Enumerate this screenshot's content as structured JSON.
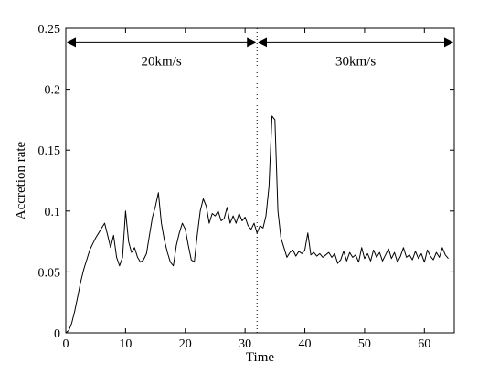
{
  "chart_data": {
    "type": "line",
    "title": "",
    "xlabel": "Time",
    "ylabel": "Accretion rate",
    "xlim": [
      0,
      65
    ],
    "ylim": [
      0,
      0.25
    ],
    "grid": false,
    "x_ticks": [
      0,
      10,
      20,
      30,
      40,
      50,
      60
    ],
    "x_tick_labels": [
      "0",
      "10",
      "20",
      "30",
      "40",
      "50",
      "60"
    ],
    "y_ticks": [
      0,
      0.05,
      0.1,
      0.15,
      0.2,
      0.25
    ],
    "y_tick_labels": [
      "0",
      "0.05",
      "0.1",
      "0.15",
      "0.2",
      "0.25"
    ],
    "series": [
      {
        "x": [
          0,
          0.5,
          1,
          1.5,
          2,
          2.5,
          3,
          3.5,
          4,
          4.5,
          5,
          5.5,
          6,
          6.5,
          7,
          7.5,
          8,
          8.5,
          9,
          9.5,
          10,
          10.5,
          11,
          11.5,
          12,
          12.5,
          13,
          13.5,
          14,
          14.5,
          15,
          15.5,
          16,
          16.5,
          17,
          17.5,
          18,
          18.5,
          19,
          19.5,
          20,
          20.5,
          21,
          21.5,
          22,
          22.5,
          23,
          23.5,
          24,
          24.5,
          25,
          25.5,
          26,
          26.5,
          27,
          27.5,
          28,
          28.5,
          29,
          29.5,
          30,
          30.5,
          31,
          31.5,
          32,
          32.5,
          33,
          33.5,
          34,
          34.5,
          35,
          35.5,
          36,
          36.5,
          37,
          37.5,
          38,
          38.5,
          39,
          39.5,
          40,
          40.5,
          41,
          41.5,
          42,
          42.5,
          43,
          43.5,
          44,
          44.5,
          45,
          45.5,
          46,
          46.5,
          47,
          47.5,
          48,
          48.5,
          49,
          49.5,
          50,
          50.5,
          51,
          51.5,
          52,
          52.5,
          53,
          53.5,
          54,
          54.5,
          55,
          55.5,
          56,
          56.5,
          57,
          57.5,
          58,
          58.5,
          59,
          59.5,
          60,
          60.5,
          61,
          61.5,
          62,
          62.5,
          63,
          63.5,
          64
        ],
        "y": [
          0,
          0.002,
          0.008,
          0.018,
          0.03,
          0.042,
          0.052,
          0.06,
          0.068,
          0.073,
          0.078,
          0.082,
          0.086,
          0.09,
          0.08,
          0.07,
          0.08,
          0.062,
          0.055,
          0.062,
          0.1,
          0.075,
          0.066,
          0.07,
          0.062,
          0.058,
          0.06,
          0.065,
          0.08,
          0.095,
          0.104,
          0.115,
          0.09,
          0.076,
          0.066,
          0.058,
          0.055,
          0.072,
          0.082,
          0.09,
          0.085,
          0.072,
          0.06,
          0.058,
          0.08,
          0.1,
          0.11,
          0.104,
          0.09,
          0.098,
          0.096,
          0.1,
          0.092,
          0.094,
          0.103,
          0.09,
          0.096,
          0.09,
          0.098,
          0.092,
          0.095,
          0.088,
          0.085,
          0.09,
          0.082,
          0.088,
          0.086,
          0.096,
          0.12,
          0.178,
          0.175,
          0.1,
          0.078,
          0.07,
          0.062,
          0.066,
          0.068,
          0.063,
          0.067,
          0.065,
          0.068,
          0.082,
          0.064,
          0.066,
          0.063,
          0.065,
          0.062,
          0.064,
          0.066,
          0.062,
          0.065,
          0.057,
          0.06,
          0.067,
          0.059,
          0.066,
          0.062,
          0.064,
          0.058,
          0.07,
          0.061,
          0.065,
          0.059,
          0.068,
          0.062,
          0.066,
          0.059,
          0.064,
          0.069,
          0.061,
          0.066,
          0.058,
          0.063,
          0.07,
          0.062,
          0.064,
          0.06,
          0.067,
          0.061,
          0.065,
          0.058,
          0.068,
          0.063,
          0.06,
          0.066,
          0.062,
          0.07,
          0.064,
          0.061
        ]
      }
    ],
    "vertical_line": {
      "x": 32,
      "style": "dotted"
    },
    "annotations": [
      {
        "label": "20km/s",
        "x_start": 0,
        "x_end": 32,
        "y": 0.24,
        "arrow": "double"
      },
      {
        "label": "30km/s",
        "x_start": 32,
        "x_end": 65,
        "y": 0.24,
        "arrow": "double"
      }
    ]
  }
}
